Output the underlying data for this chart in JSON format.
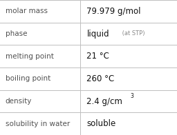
{
  "rows": [
    {
      "label": "molar mass",
      "value": "79.979 g/mol",
      "type": "plain"
    },
    {
      "label": "phase",
      "value": "liquid",
      "type": "suffix",
      "suffix": " (at STP)"
    },
    {
      "label": "melting point",
      "value": "21 °C",
      "type": "plain"
    },
    {
      "label": "boiling point",
      "value": "260 °C",
      "type": "plain"
    },
    {
      "label": "density",
      "value": "2.4 g/cm",
      "type": "super",
      "superscript": "3"
    },
    {
      "label": "solubility in water",
      "value": "soluble",
      "type": "plain"
    }
  ],
  "col_split": 0.455,
  "bg_color": "#ffffff",
  "line_color": "#bebebe",
  "label_color": "#505050",
  "value_color": "#111111",
  "suffix_color": "#888888",
  "label_fontsize": 7.5,
  "value_fontsize": 8.5,
  "suffix_fontsize": 6.0,
  "super_fontsize": 5.5
}
